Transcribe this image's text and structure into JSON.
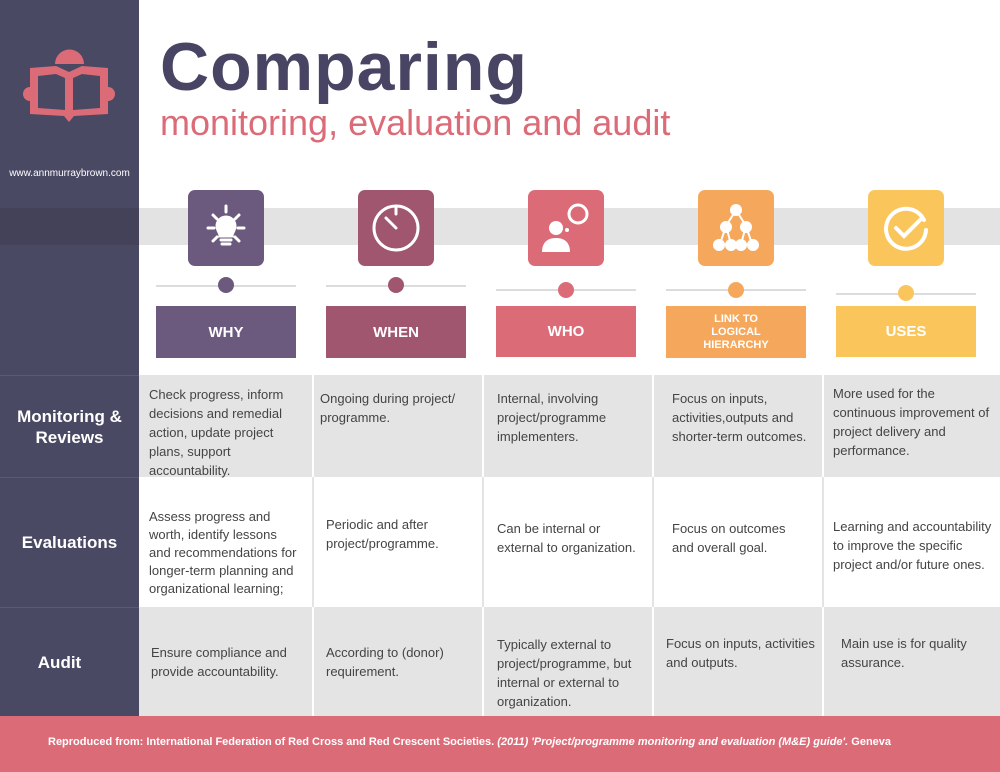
{
  "header": {
    "title": "Comparing",
    "subtitle": "monitoring, evaluation and audit",
    "website": "www.annmurraybrown.com",
    "logo_icon": "reading-person-icon"
  },
  "colors": {
    "sidebar": "#4a4964",
    "why": "#6b5a7e",
    "when": "#a0566e",
    "who": "#dc6b78",
    "link": "#f5a85c",
    "uses": "#fac65c",
    "title": "#474563",
    "accent": "#dc6b78"
  },
  "columns": [
    {
      "label": "WHY",
      "icon": "lightbulb-icon"
    },
    {
      "label": "WHEN",
      "icon": "stopwatch-icon"
    },
    {
      "label": "WHO",
      "icon": "person-thinking-icon"
    },
    {
      "label": "LINK TO LOGICAL HIERARCHY",
      "icon": "hierarchy-icon"
    },
    {
      "label": "USES",
      "icon": "checkmark-circle-icon"
    }
  ],
  "rows": [
    {
      "label": "Monitoring & Reviews",
      "cells": [
        "Check progress, inform decisions and remedial action, update project plans, support accountability.",
        "Ongoing during project/ programme.",
        "Internal, involving project/programme implementers.",
        "Focus on inputs, activities,outputs and shorter-term outcomes.",
        "More used for the continuous improvement of project delivery and performance."
      ]
    },
    {
      "label": "Evaluations",
      "cells": [
        "Assess progress and worth, identify lessons and recommendations for longer-term planning and organizational learning;",
        "Periodic and after project/programme.",
        "Can be internal or external to organization.",
        "Focus on outcomes and overall goal.",
        "Learning and accountability to improve the specific project and/or future ones."
      ]
    },
    {
      "label": "Audit",
      "cells": [
        "Ensure compliance and provide accountability.",
        "According to (donor) requirement.",
        "Typically external to project/programme, but internal or external to organization.",
        "Focus on inputs, activities and outputs.",
        "Main use is for quality assurance."
      ]
    }
  ],
  "footer": {
    "prefix": "Reproduced from: International Federation of Red Cross and Red Crescent Societies.",
    "citation": " (2011) 'Project/programme monitoring and evaluation (M&E) guide'.",
    "suffix": " Geneva"
  }
}
